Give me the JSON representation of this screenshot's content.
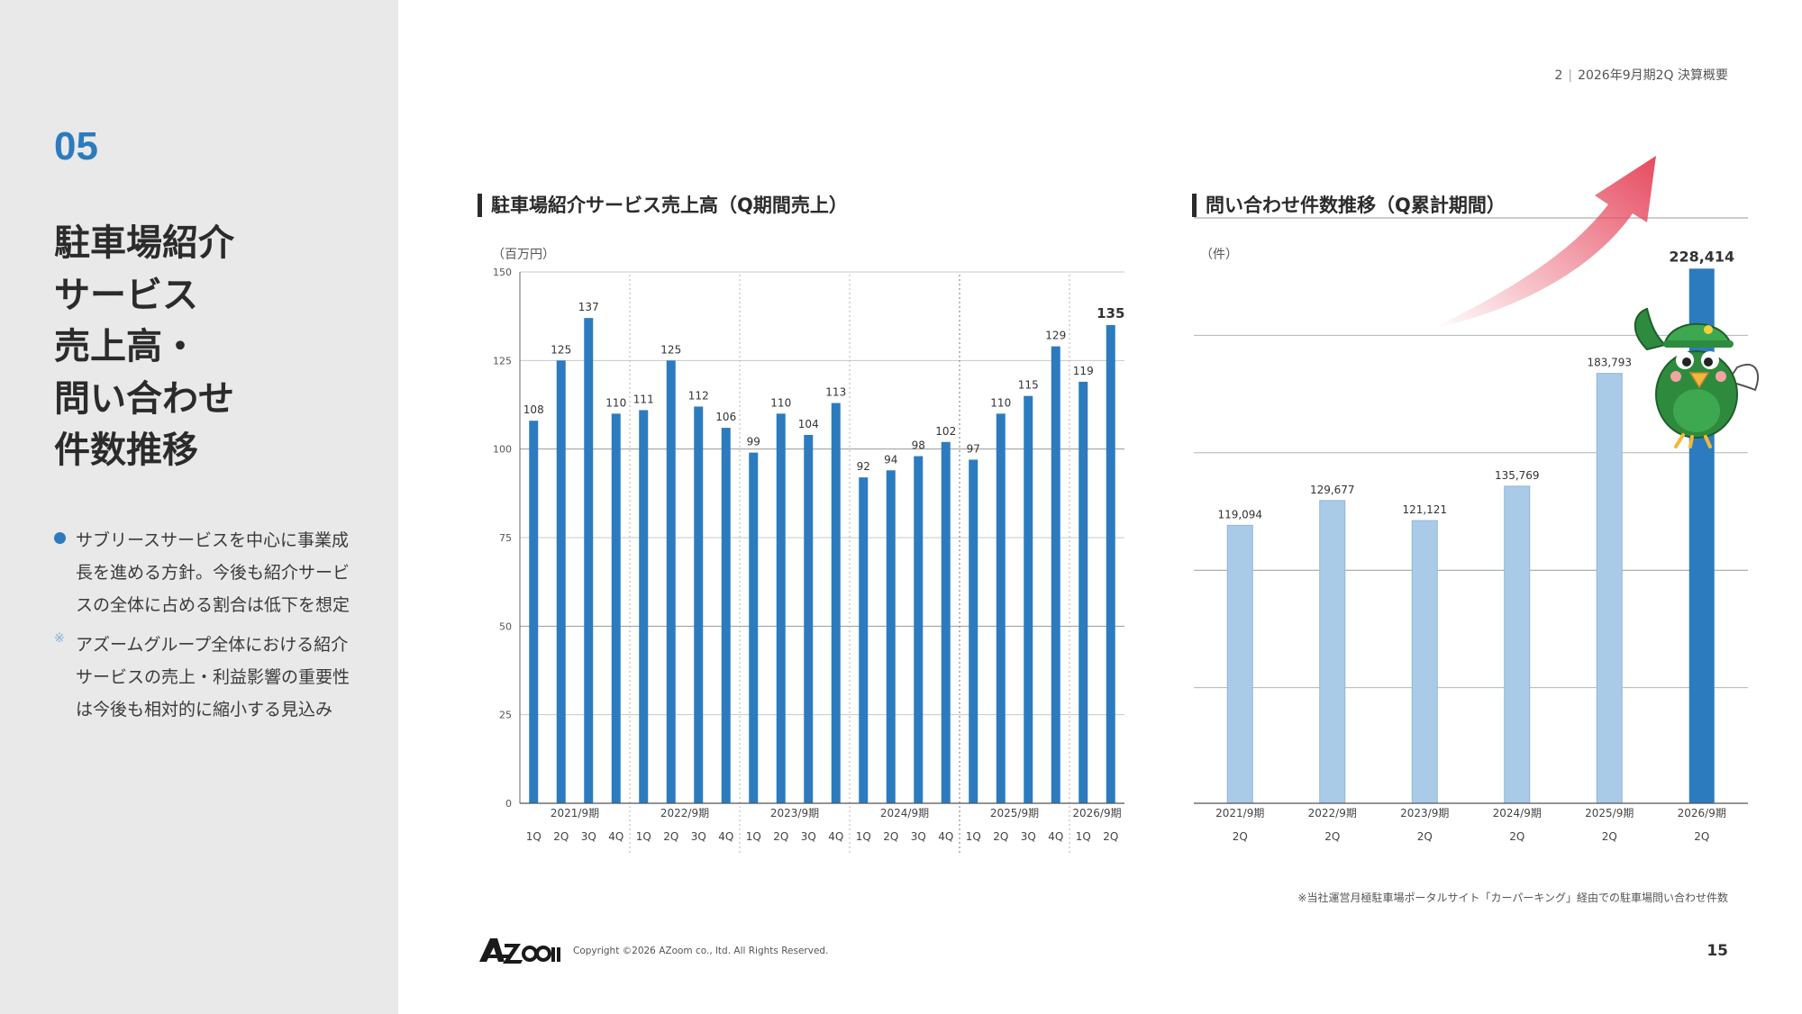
{
  "header": {
    "slide_no": "2",
    "title": "2026年9月期2Q 決算概要"
  },
  "sidebar": {
    "section_number": "05",
    "title_lines": [
      "駐車場紹介",
      "サービス",
      "売上高・",
      "問い合わせ",
      "件数推移"
    ],
    "bullets": [
      "サブリースサービスを中心に事業成長を進める方針。今後も紹介サービスの全体に占める割合は低下を想定",
      "アズームグループ全体における紹介サービスの売上・利益影響の重要性は今後も相対的に縮小する見込み"
    ]
  },
  "colors": {
    "accent": "#2c7bbf",
    "bar_light": "#a9cbe7",
    "arrow": "#e64a5f",
    "sidebar_bg": "#e9e9e9"
  },
  "chart_data": [
    {
      "type": "bar",
      "title": "駐車場紹介サービス売上高（Q期間売上）",
      "ylabel": "（百万円）",
      "ylim": [
        0,
        150
      ],
      "yticks": [
        0,
        25,
        50,
        75,
        100,
        125,
        150
      ],
      "grid": true,
      "groups": [
        "2021/9期",
        "2022/9期",
        "2023/9期",
        "2024/9期",
        "2025/9期",
        "2026/9期"
      ],
      "categories": [
        "1Q",
        "2Q",
        "3Q",
        "4Q",
        "1Q",
        "2Q",
        "3Q",
        "4Q",
        "1Q",
        "2Q",
        "3Q",
        "4Q",
        "1Q",
        "2Q",
        "3Q",
        "4Q",
        "1Q",
        "2Q",
        "3Q",
        "4Q",
        "1Q",
        "2Q"
      ],
      "values": [
        108,
        125,
        137,
        110,
        111,
        125,
        112,
        106,
        99,
        110,
        104,
        113,
        92,
        94,
        98,
        102,
        97,
        110,
        115,
        129,
        119,
        135
      ],
      "highlight_last": true
    },
    {
      "type": "bar",
      "title": "問い合わせ件数推移（Q累計期間）",
      "ylabel": "（件）",
      "ylim": [
        0,
        250000
      ],
      "grid": true,
      "categories": [
        "2021/9期",
        "2022/9期",
        "2023/9期",
        "2024/9期",
        "2025/9期",
        "2026/9期"
      ],
      "sub_labels": [
        "2Q",
        "2Q",
        "2Q",
        "2Q",
        "2Q",
        "2Q"
      ],
      "values": [
        119094,
        129677,
        121121,
        135769,
        183793,
        228414
      ],
      "value_labels": [
        "119,094",
        "129,677",
        "121,121",
        "135,769",
        "183,793",
        "228,414"
      ],
      "highlight_last": true
    }
  ],
  "footnote": "※当社運営月極駐車場ポータルサイト「カーパーキング」経由での駐車場問い合わせ件数",
  "footer": {
    "logo_alt": "AZoom",
    "copyright": "Copyright ©2026 AZoom co., ltd. All Rights Reserved.",
    "page_number": "15"
  }
}
